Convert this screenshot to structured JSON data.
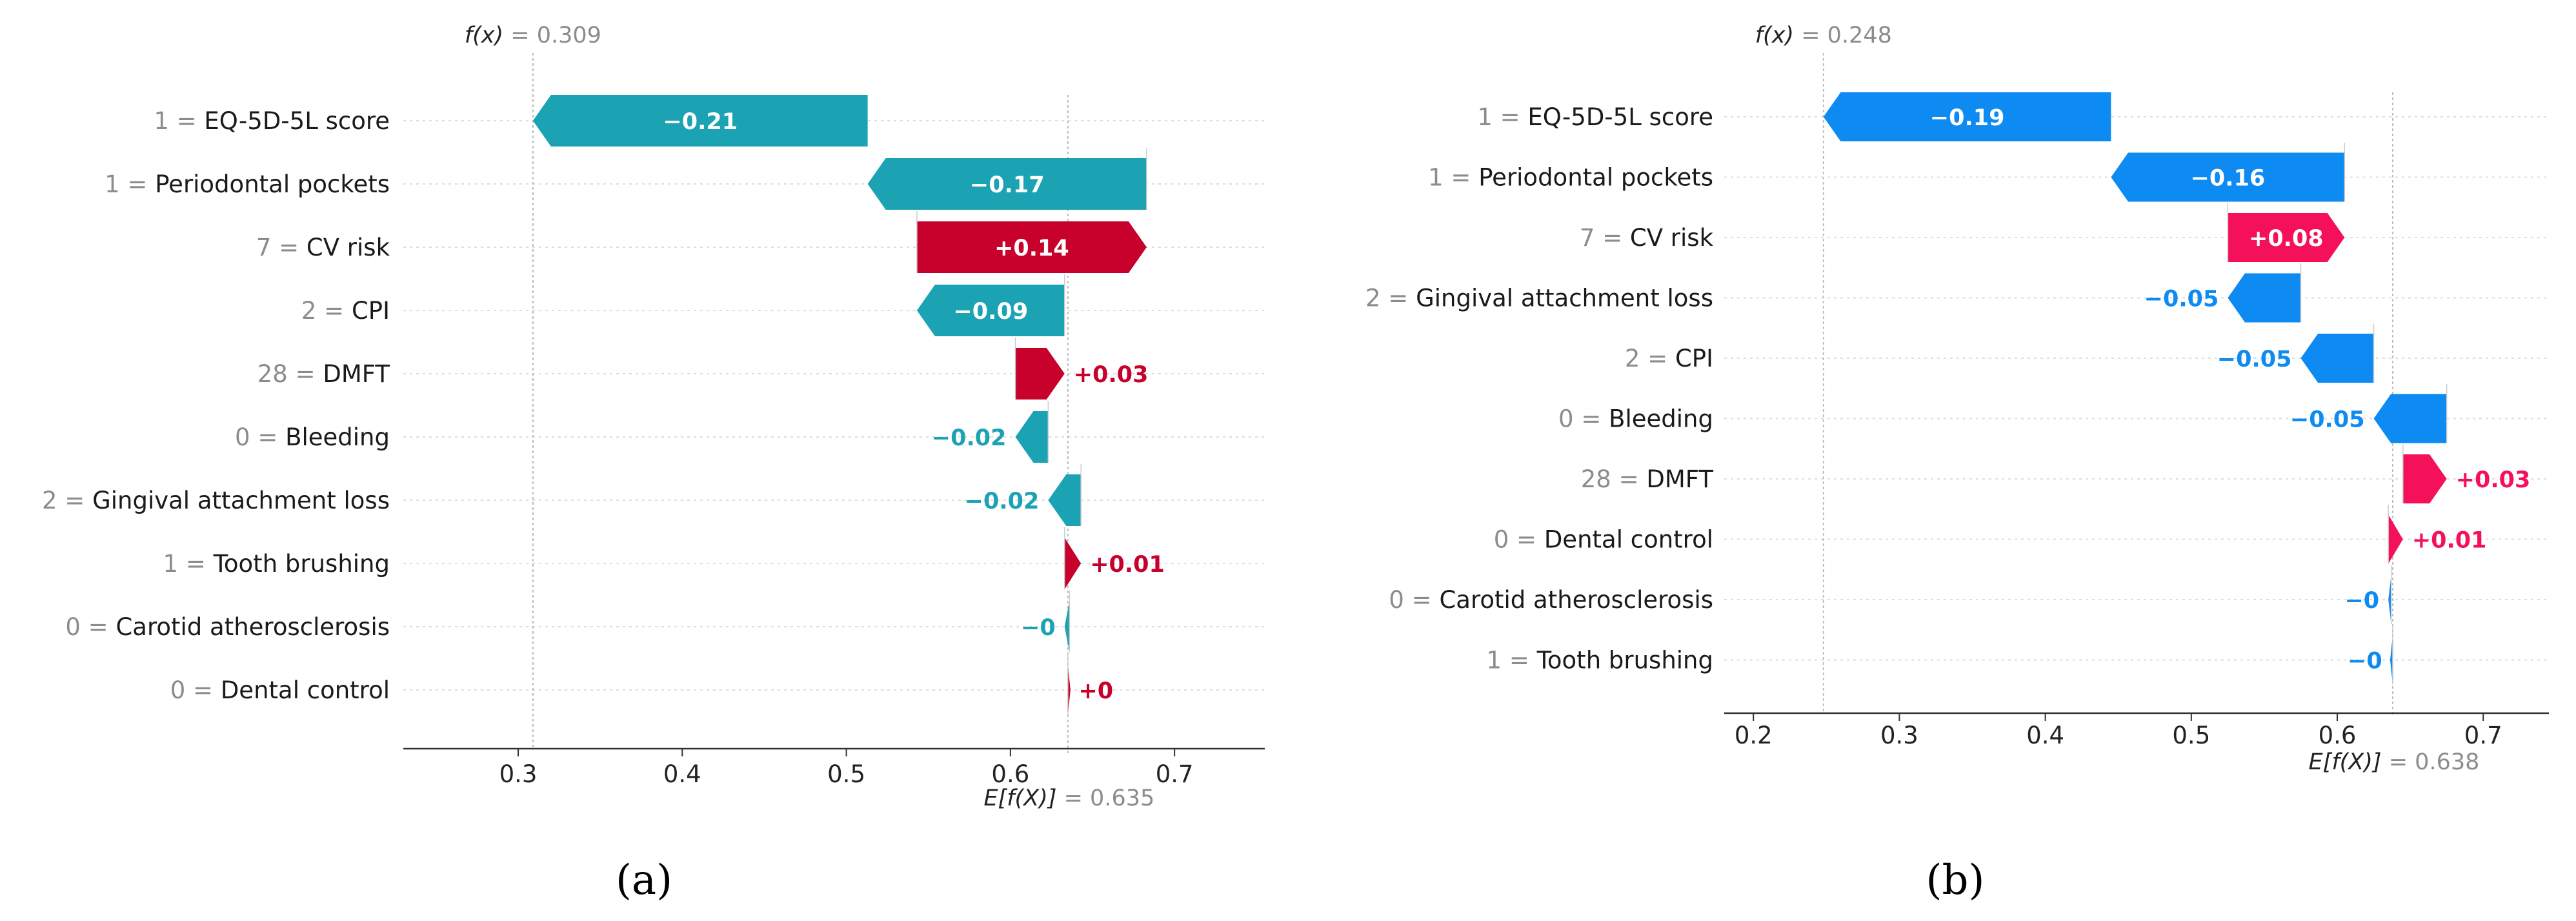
{
  "colors": {
    "a": {
      "negative": "#1ba3b3",
      "positive": "#c7002c"
    },
    "b": {
      "negative": "#0d8bf2",
      "positive": "#f5105a"
    }
  },
  "chart_data": [
    {
      "type": "waterfall",
      "caption": "(a)",
      "fx_label": "f(x)",
      "fx_value": 0.309,
      "fx_value_text": "0.309",
      "base_label": "E[f(X)]",
      "base_value": 0.635,
      "base_value_text": "0.635",
      "xlim": [
        0.23,
        0.755
      ],
      "xticks": [
        0.3,
        0.4,
        0.5,
        0.6,
        0.7
      ],
      "xtick_labels": [
        "0.3",
        "0.4",
        "0.5",
        "0.6",
        "0.7"
      ],
      "features": [
        {
          "value": "1",
          "name": "EQ-5D-5L score",
          "shap": -0.21,
          "label": "−0.21"
        },
        {
          "value": "1",
          "name": "Periodontal pockets",
          "shap": -0.17,
          "label": "−0.17"
        },
        {
          "value": "7",
          "name": "CV risk",
          "shap": 0.14,
          "label": "+0.14"
        },
        {
          "value": "2",
          "name": "CPI",
          "shap": -0.09,
          "label": "−0.09"
        },
        {
          "value": "28",
          "name": "DMFT",
          "shap": 0.03,
          "label": "+0.03"
        },
        {
          "value": "0",
          "name": "Bleeding",
          "shap": -0.02,
          "label": "−0.02"
        },
        {
          "value": "2",
          "name": "Gingival attachment loss",
          "shap": -0.02,
          "label": "−0.02"
        },
        {
          "value": "1",
          "name": "Tooth brushing",
          "shap": 0.01,
          "label": "+0.01"
        },
        {
          "value": "0",
          "name": "Carotid atherosclerosis",
          "shap": -0.003,
          "label": "−0"
        },
        {
          "value": "0",
          "name": "Dental control",
          "shap": 0.001,
          "label": "+0"
        }
      ]
    },
    {
      "type": "waterfall",
      "caption": "(b)",
      "fx_label": "f(x)",
      "fx_value": 0.248,
      "fx_value_text": "0.248",
      "base_label": "E[f(X)]",
      "base_value": 0.638,
      "base_value_text": "0.638",
      "xlim": [
        0.18,
        0.745
      ],
      "xticks": [
        0.2,
        0.3,
        0.4,
        0.5,
        0.6,
        0.7
      ],
      "xtick_labels": [
        "0.2",
        "0.3",
        "0.4",
        "0.5",
        "0.6",
        "0.7"
      ],
      "features": [
        {
          "value": "1",
          "name": "EQ-5D-5L score",
          "shap": -0.19,
          "label": "−0.19"
        },
        {
          "value": "1",
          "name": "Periodontal pockets",
          "shap": -0.16,
          "label": "−0.16"
        },
        {
          "value": "7",
          "name": "CV risk",
          "shap": 0.08,
          "label": "+0.08"
        },
        {
          "value": "2",
          "name": "Gingival attachment loss",
          "shap": -0.05,
          "label": "−0.05"
        },
        {
          "value": "2",
          "name": "CPI",
          "shap": -0.05,
          "label": "−0.05"
        },
        {
          "value": "0",
          "name": "Bleeding",
          "shap": -0.05,
          "label": "−0.05"
        },
        {
          "value": "28",
          "name": "DMFT",
          "shap": 0.03,
          "label": "+0.03"
        },
        {
          "value": "0",
          "name": "Dental control",
          "shap": 0.01,
          "label": "+0.01"
        },
        {
          "value": "0",
          "name": "Carotid atherosclerosis",
          "shap": -0.002,
          "label": "−0"
        },
        {
          "value": "1",
          "name": "Tooth brushing",
          "shap": -0.001,
          "label": "−0"
        }
      ]
    }
  ]
}
